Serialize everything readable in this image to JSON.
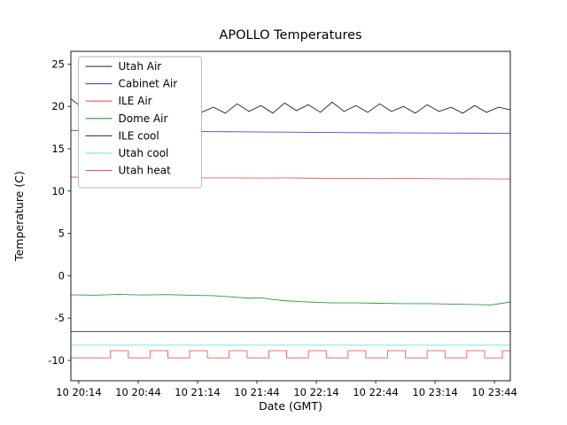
{
  "chart_data": {
    "type": "line",
    "title": "APOLLO Temperatures",
    "xlabel": "Date (GMT)",
    "ylabel": "Temperature (C)",
    "xlim": [
      0,
      222
    ],
    "ylim": [
      -12.4,
      26.5
    ],
    "grid": false,
    "legend_position": "upper-left",
    "xticks": {
      "positions": [
        4,
        34,
        64,
        94,
        124,
        154,
        184,
        214
      ],
      "labels": [
        "10 20:14",
        "10 20:44",
        "10 21:14",
        "10 21:44",
        "10 22:14",
        "10 22:44",
        "10 23:14",
        "10 23:44"
      ]
    },
    "yticks": {
      "positions": [
        25,
        20,
        15,
        10,
        5,
        0,
        -5,
        -10
      ],
      "labels": [
        "25",
        "20",
        "15",
        "10",
        "5",
        "0",
        "-5",
        "-10"
      ]
    },
    "series": [
      {
        "name": "Utah Air",
        "color": "#222222",
        "x": [
          0,
          6,
          12,
          18,
          24,
          30,
          36,
          42,
          48,
          54,
          60,
          66,
          72,
          78,
          84,
          90,
          96,
          102,
          108,
          114,
          120,
          126,
          132,
          138,
          144,
          150,
          156,
          162,
          168,
          174,
          180,
          186,
          192,
          198,
          204,
          210,
          216,
          222
        ],
        "y": [
          20.9,
          19.8,
          20.0,
          19.3,
          19.9,
          19.2,
          20.1,
          19.3,
          20.0,
          19.2,
          20.2,
          19.3,
          19.9,
          19.2,
          20.3,
          19.4,
          20.1,
          19.2,
          20.4,
          19.5,
          20.2,
          19.3,
          20.5,
          19.4,
          20.1,
          19.3,
          20.3,
          19.4,
          20.0,
          19.2,
          20.2,
          19.4,
          19.9,
          19.2,
          20.1,
          19.3,
          19.9,
          19.6
        ]
      },
      {
        "name": "Cabinet Air",
        "color": "#4949c8",
        "x": [
          0,
          12,
          24,
          36,
          48,
          60,
          72,
          84,
          96,
          108,
          120,
          132,
          144,
          156,
          168,
          180,
          192,
          204,
          216,
          222
        ],
        "y": [
          17.15,
          17.12,
          17.1,
          17.1,
          17.08,
          17.05,
          17.02,
          17.0,
          16.98,
          16.96,
          16.94,
          16.92,
          16.9,
          16.88,
          16.87,
          16.86,
          16.85,
          16.84,
          16.82,
          16.8
        ]
      },
      {
        "name": "ILE Air",
        "color": "#e95c5c",
        "x": [
          0,
          12,
          24,
          36,
          48,
          60,
          72,
          84,
          96,
          108,
          120,
          132,
          144,
          156,
          168,
          180,
          192,
          204,
          216,
          222
        ],
        "y": [
          11.65,
          11.62,
          11.6,
          11.58,
          11.6,
          11.57,
          11.55,
          11.55,
          11.53,
          11.55,
          11.52,
          11.5,
          11.5,
          11.48,
          11.5,
          11.47,
          11.45,
          11.45,
          11.43,
          11.42
        ]
      },
      {
        "name": "Dome Air",
        "color": "#35953d",
        "x": [
          0,
          12,
          24,
          36,
          48,
          60,
          72,
          84,
          90,
          96,
          102,
          108,
          120,
          132,
          144,
          156,
          168,
          180,
          192,
          204,
          212,
          218,
          222
        ],
        "y": [
          -2.25,
          -2.3,
          -2.2,
          -2.28,
          -2.22,
          -2.3,
          -2.35,
          -2.55,
          -2.65,
          -2.6,
          -2.8,
          -2.95,
          -3.1,
          -3.2,
          -3.2,
          -3.25,
          -3.3,
          -3.3,
          -3.35,
          -3.4,
          -3.45,
          -3.25,
          -3.1
        ]
      },
      {
        "name": "ILE cool",
        "color": "#3c3c6e",
        "x": [
          0,
          222
        ],
        "y": [
          -6.6,
          -6.6
        ]
      },
      {
        "name": "Utah cool",
        "color": "#63e7e7",
        "x": [
          0,
          222
        ],
        "y": [
          -8.2,
          -8.2
        ]
      },
      {
        "name": "Utah heat",
        "color": "#e95c5c",
        "x": [
          0,
          20,
          20,
          29,
          29,
          40,
          40,
          49,
          49,
          60,
          60,
          69,
          69,
          80,
          80,
          89,
          89,
          100,
          100,
          109,
          109,
          120,
          120,
          129,
          129,
          140,
          140,
          149,
          149,
          160,
          160,
          169,
          169,
          180,
          180,
          189,
          189,
          200,
          200,
          209,
          209,
          218,
          218,
          222
        ],
        "y": [
          -9.7,
          -9.7,
          -8.85,
          -8.85,
          -9.7,
          -9.7,
          -8.85,
          -8.85,
          -9.7,
          -9.7,
          -8.85,
          -8.85,
          -9.7,
          -9.7,
          -8.85,
          -8.85,
          -9.7,
          -9.7,
          -8.85,
          -8.85,
          -9.7,
          -9.7,
          -8.85,
          -8.85,
          -9.7,
          -9.7,
          -8.85,
          -8.85,
          -9.7,
          -9.7,
          -8.85,
          -8.85,
          -9.7,
          -9.7,
          -8.85,
          -8.85,
          -9.7,
          -9.7,
          -8.85,
          -8.85,
          -9.7,
          -9.7,
          -8.85,
          -8.85
        ]
      }
    ],
    "styles": {
      "axis_color": "#000000",
      "legend_border_color": "#b3b3b3",
      "background_color": "#ffffff",
      "line_width": 0.9
    }
  }
}
